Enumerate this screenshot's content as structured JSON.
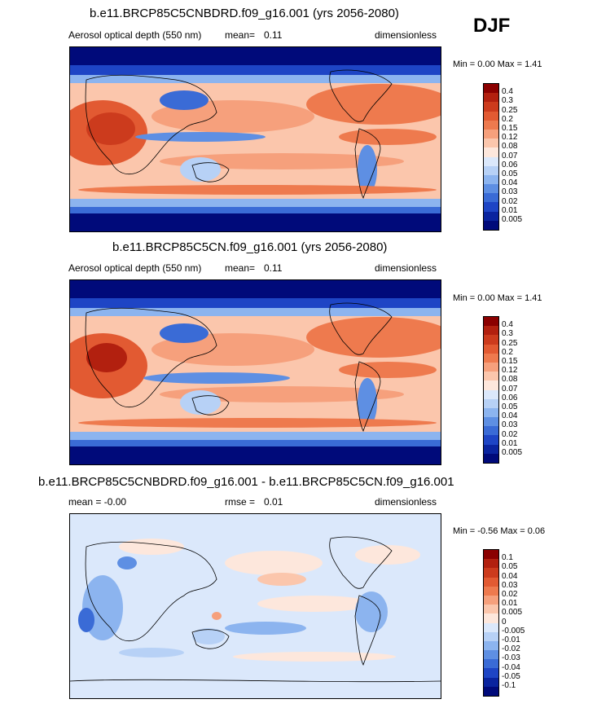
{
  "season": "DJF",
  "panels": [
    {
      "title": "b.e11.BRCP85C5CNBDRD.f09_g16.001 (yrs 2056-2080)",
      "left_label": "Aerosol optical depth (550 nm)",
      "mean_label": "mean=",
      "mean_value": "0.11",
      "units": "dimensionless",
      "min_label": "Min =",
      "min_value": "0.00",
      "max_label": "Max =",
      "max_value": "1.41"
    },
    {
      "title": "b.e11.BRCP85C5CN.f09_g16.001 (yrs 2056-2080)",
      "left_label": "Aerosol optical depth (550 nm)",
      "mean_label": "mean=",
      "mean_value": "0.11",
      "units": "dimensionless",
      "min_label": "Min =",
      "min_value": "0.00",
      "max_label": "Max =",
      "max_value": "1.41"
    },
    {
      "title": "b.e11.BRCP85C5CNBDRD.f09_g16.001 - b.e11.BRCP85C5CN.f09_g16.001",
      "left_label": "mean =  -0.00",
      "mean_label": "rmse =",
      "mean_value": "0.01",
      "units": "dimensionless",
      "min_label": "Min =",
      "min_value": "-0.56",
      "max_label": "Max =",
      "max_value": "0.06"
    }
  ],
  "colorbar_abs": {
    "labels": [
      "0.4",
      "0.3",
      "0.25",
      "0.2",
      "0.15",
      "0.12",
      "0.08",
      "0.07",
      "0.06",
      "0.05",
      "0.04",
      "0.03",
      "0.02",
      "0.01",
      "0.005"
    ],
    "colors": [
      "#8b0000",
      "#b2200f",
      "#cc3b1d",
      "#e25a32",
      "#ee7a4e",
      "#f6a07c",
      "#fbc6ac",
      "#fde7dc",
      "#dbe8fb",
      "#b7d1f6",
      "#8cb4ef",
      "#5e8fe3",
      "#3a6bd6",
      "#1e45c5",
      "#0a249f",
      "#000a7a"
    ]
  },
  "colorbar_diff": {
    "labels": [
      "0.1",
      "0.05",
      "0.04",
      "0.03",
      "0.02",
      "0.01",
      "0.005",
      "0",
      "-0.005",
      "-0.01",
      "-0.02",
      "-0.03",
      "-0.04",
      "-0.05",
      "-0.1"
    ],
    "colors": [
      "#8b0000",
      "#b2200f",
      "#cc3b1d",
      "#e25a32",
      "#ee7a4e",
      "#f6a07c",
      "#fbc6ac",
      "#fde7dc",
      "#dbe8fb",
      "#b7d1f6",
      "#8cb4ef",
      "#5e8fe3",
      "#3a6bd6",
      "#1e45c5",
      "#0a249f",
      "#000a7a"
    ]
  }
}
